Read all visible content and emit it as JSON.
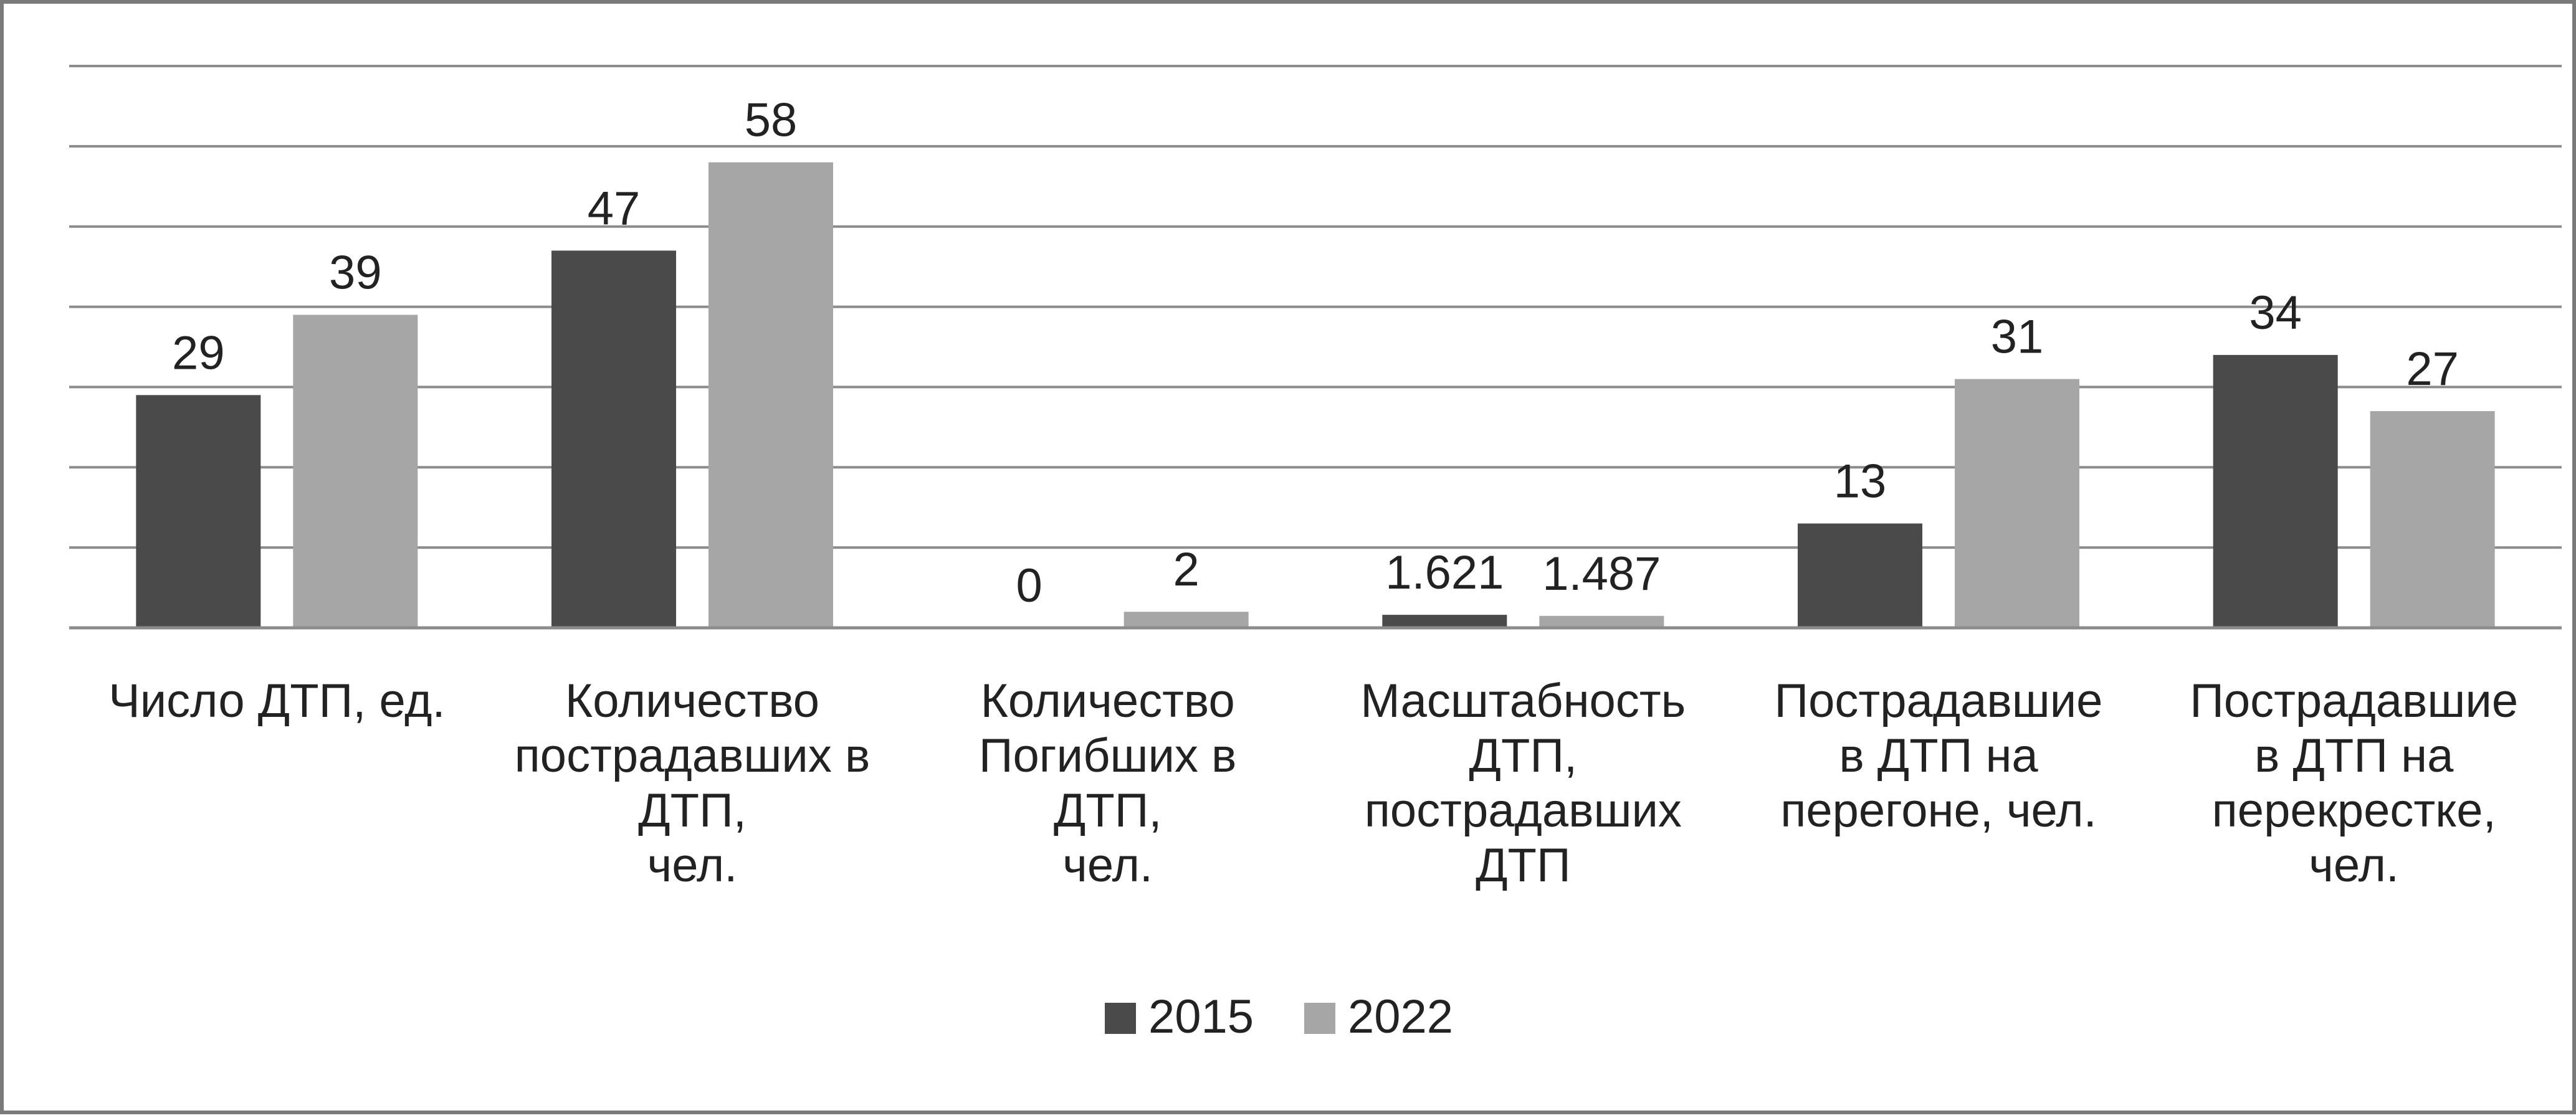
{
  "chart_data": {
    "type": "bar",
    "categories": [
      [
        "Число ДТП, ед."
      ],
      [
        "Количество",
        "пострадавших в",
        "ДТП,",
        "чел."
      ],
      [
        "Количество",
        "Погибших в",
        "ДТП,",
        "чел."
      ],
      [
        "Масштабность",
        "ДТП,",
        "пострадавших",
        "ДТП"
      ],
      [
        "Пострадавшие",
        "в ДТП на",
        "перегоне, чел."
      ],
      [
        "Пострадавшие",
        "в ДТП на",
        "перекрестке,",
        "чел."
      ]
    ],
    "series": [
      {
        "name": "2015",
        "color": "#4a4a4a",
        "values": [
          29,
          47,
          0,
          1.621,
          13,
          34
        ],
        "labels": [
          "29",
          "47",
          "0",
          "1.621",
          "13",
          "34"
        ]
      },
      {
        "name": "2022",
        "color": "#a6a6a6",
        "values": [
          39,
          58,
          2,
          1.487,
          31,
          27
        ],
        "labels": [
          "39",
          "58",
          "2",
          "1.487",
          "31",
          "27"
        ]
      }
    ],
    "title": "",
    "xlabel": "",
    "ylabel": "",
    "ylim": [
      0,
      70
    ],
    "ytick_step": 10,
    "grid": true,
    "legend": "bottom-center"
  }
}
